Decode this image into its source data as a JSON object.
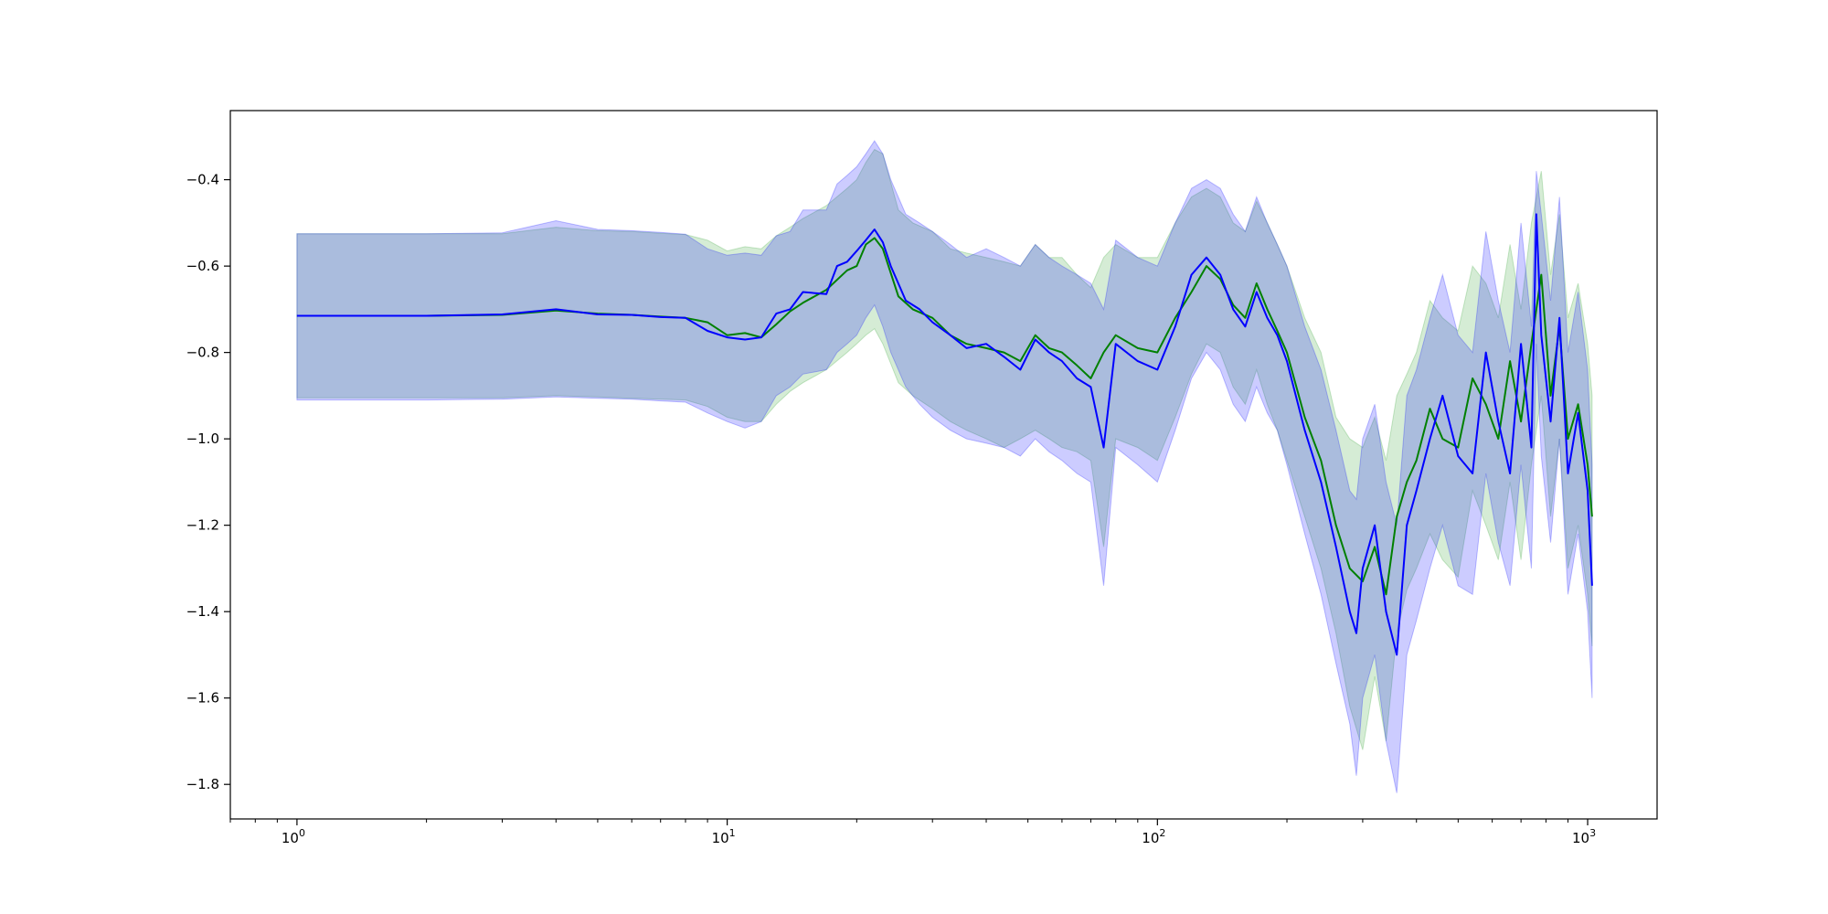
{
  "chart_data": {
    "type": "line",
    "title": "",
    "xlabel": "",
    "ylabel": "",
    "x_scale": "log",
    "xlim": [
      0.7,
      1450
    ],
    "ylim": [
      -1.88,
      -0.24
    ],
    "grid": false,
    "legend": "none",
    "x_ticks": [
      {
        "base": "10",
        "exp": "0",
        "value": 1
      },
      {
        "base": "10",
        "exp": "1",
        "value": 10
      },
      {
        "base": "10",
        "exp": "2",
        "value": 100
      },
      {
        "base": "10",
        "exp": "3",
        "value": 1000
      }
    ],
    "y_ticks": [
      {
        "label": "−0.4",
        "value": -0.4
      },
      {
        "label": "−0.6",
        "value": -0.6
      },
      {
        "label": "−0.8",
        "value": -0.8
      },
      {
        "label": "−1.0",
        "value": -1.0
      },
      {
        "label": "−1.2",
        "value": -1.2
      },
      {
        "label": "−1.4",
        "value": -1.4
      },
      {
        "label": "−1.6",
        "value": -1.6
      },
      {
        "label": "−1.8",
        "value": -1.8
      }
    ],
    "series": [
      {
        "color": "#008000",
        "band_color": "#2ca02c",
        "x": [
          1,
          2,
          3,
          4,
          5,
          6,
          7,
          8,
          9,
          10,
          11,
          12,
          13,
          14,
          15,
          17,
          19,
          20,
          21,
          22,
          23,
          25,
          27,
          30,
          33,
          36,
          40,
          44,
          48,
          52,
          56,
          60,
          65,
          70,
          75,
          80,
          90,
          100,
          110,
          120,
          130,
          140,
          150,
          160,
          170,
          180,
          190,
          200,
          220,
          240,
          260,
          280,
          300,
          320,
          340,
          360,
          380,
          400,
          430,
          460,
          500,
          540,
          580,
          620,
          660,
          700,
          740,
          780,
          820,
          860,
          900,
          950,
          1000,
          1024
        ],
        "y": [
          -0.715,
          -0.715,
          -0.713,
          -0.703,
          -0.71,
          -0.713,
          -0.717,
          -0.72,
          -0.73,
          -0.76,
          -0.755,
          -0.765,
          -0.735,
          -0.705,
          -0.685,
          -0.655,
          -0.61,
          -0.6,
          -0.55,
          -0.535,
          -0.56,
          -0.67,
          -0.7,
          -0.72,
          -0.76,
          -0.78,
          -0.79,
          -0.8,
          -0.82,
          -0.76,
          -0.79,
          -0.8,
          -0.83,
          -0.86,
          -0.8,
          -0.76,
          -0.79,
          -0.8,
          -0.72,
          -0.66,
          -0.6,
          -0.63,
          -0.69,
          -0.72,
          -0.64,
          -0.7,
          -0.75,
          -0.8,
          -0.95,
          -1.05,
          -1.2,
          -1.3,
          -1.33,
          -1.25,
          -1.36,
          -1.18,
          -1.1,
          -1.05,
          -0.93,
          -1.0,
          -1.02,
          -0.86,
          -0.92,
          -1.0,
          -0.82,
          -0.96,
          -0.78,
          -0.62,
          -0.9,
          -0.74,
          -1.0,
          -0.92,
          -1.06,
          -1.18
        ],
        "lower": [
          -0.905,
          -0.905,
          -0.905,
          -0.9,
          -0.903,
          -0.906,
          -0.908,
          -0.91,
          -0.925,
          -0.95,
          -0.96,
          -0.96,
          -0.92,
          -0.89,
          -0.87,
          -0.84,
          -0.8,
          -0.78,
          -0.76,
          -0.745,
          -0.78,
          -0.87,
          -0.9,
          -0.93,
          -0.96,
          -0.98,
          -1.0,
          -1.02,
          -1.0,
          -0.98,
          -1.0,
          -1.02,
          -1.03,
          -1.05,
          -1.25,
          -1.0,
          -1.02,
          -1.05,
          -0.95,
          -0.85,
          -0.78,
          -0.8,
          -0.88,
          -0.92,
          -0.84,
          -0.92,
          -0.98,
          -1.05,
          -1.18,
          -1.3,
          -1.45,
          -1.62,
          -1.72,
          -1.55,
          -1.7,
          -1.45,
          -1.35,
          -1.3,
          -1.22,
          -1.28,
          -1.32,
          -1.12,
          -1.2,
          -1.28,
          -1.1,
          -1.28,
          -1.06,
          -0.9,
          -1.18,
          -1.0,
          -1.3,
          -1.2,
          -1.36,
          -1.48
        ],
        "upper": [
          -0.525,
          -0.525,
          -0.525,
          -0.51,
          -0.518,
          -0.52,
          -0.524,
          -0.527,
          -0.54,
          -0.565,
          -0.555,
          -0.56,
          -0.53,
          -0.51,
          -0.49,
          -0.46,
          -0.42,
          -0.4,
          -0.36,
          -0.33,
          -0.34,
          -0.47,
          -0.5,
          -0.52,
          -0.56,
          -0.57,
          -0.58,
          -0.59,
          -0.6,
          -0.55,
          -0.58,
          -0.58,
          -0.62,
          -0.65,
          -0.58,
          -0.55,
          -0.58,
          -0.58,
          -0.5,
          -0.44,
          -0.42,
          -0.44,
          -0.5,
          -0.52,
          -0.45,
          -0.5,
          -0.55,
          -0.6,
          -0.72,
          -0.8,
          -0.95,
          -1.0,
          -1.02,
          -0.95,
          -1.05,
          -0.9,
          -0.85,
          -0.8,
          -0.68,
          -0.72,
          -0.75,
          -0.6,
          -0.64,
          -0.72,
          -0.55,
          -0.7,
          -0.5,
          -0.38,
          -0.62,
          -0.48,
          -0.72,
          -0.64,
          -0.78,
          -0.9
        ]
      },
      {
        "color": "#0000ff",
        "band_color": "#0000ff",
        "x": [
          1,
          2,
          3,
          4,
          5,
          6,
          7,
          8,
          9,
          10,
          11,
          12,
          13,
          14,
          15,
          17,
          18,
          19,
          20,
          21,
          22,
          23,
          24,
          26,
          28,
          30,
          33,
          36,
          40,
          44,
          48,
          52,
          56,
          60,
          65,
          70,
          75,
          80,
          90,
          100,
          110,
          120,
          130,
          140,
          150,
          160,
          170,
          180,
          190,
          200,
          220,
          240,
          260,
          280,
          290,
          300,
          320,
          340,
          360,
          380,
          400,
          430,
          460,
          500,
          540,
          580,
          620,
          660,
          700,
          740,
          760,
          780,
          820,
          860,
          900,
          950,
          1000,
          1024
        ],
        "y": [
          -0.715,
          -0.715,
          -0.712,
          -0.7,
          -0.712,
          -0.713,
          -0.718,
          -0.72,
          -0.75,
          -0.765,
          -0.77,
          -0.765,
          -0.71,
          -0.7,
          -0.66,
          -0.665,
          -0.6,
          -0.59,
          -0.565,
          -0.54,
          -0.515,
          -0.545,
          -0.6,
          -0.68,
          -0.7,
          -0.73,
          -0.76,
          -0.79,
          -0.78,
          -0.81,
          -0.84,
          -0.77,
          -0.8,
          -0.82,
          -0.86,
          -0.88,
          -1.02,
          -0.78,
          -0.82,
          -0.84,
          -0.74,
          -0.62,
          -0.58,
          -0.62,
          -0.7,
          -0.74,
          -0.66,
          -0.72,
          -0.76,
          -0.82,
          -0.98,
          -1.1,
          -1.25,
          -1.4,
          -1.45,
          -1.3,
          -1.2,
          -1.4,
          -1.5,
          -1.2,
          -1.12,
          -1.0,
          -0.9,
          -1.04,
          -1.08,
          -0.8,
          -0.96,
          -1.08,
          -0.78,
          -1.02,
          -0.48,
          -0.76,
          -0.96,
          -0.72,
          -1.08,
          -0.94,
          -1.12,
          -1.34
        ],
        "lower": [
          -0.91,
          -0.91,
          -0.908,
          -0.903,
          -0.906,
          -0.908,
          -0.912,
          -0.915,
          -0.94,
          -0.96,
          -0.975,
          -0.96,
          -0.9,
          -0.88,
          -0.85,
          -0.84,
          -0.8,
          -0.78,
          -0.76,
          -0.72,
          -0.69,
          -0.74,
          -0.8,
          -0.88,
          -0.92,
          -0.95,
          -0.98,
          -1.0,
          -1.01,
          -1.02,
          -1.04,
          -1.0,
          -1.03,
          -1.05,
          -1.08,
          -1.1,
          -1.34,
          -1.02,
          -1.06,
          -1.1,
          -0.98,
          -0.86,
          -0.8,
          -0.84,
          -0.92,
          -0.96,
          -0.88,
          -0.94,
          -0.98,
          -1.06,
          -1.22,
          -1.36,
          -1.52,
          -1.66,
          -1.78,
          -1.6,
          -1.5,
          -1.7,
          -1.82,
          -1.5,
          -1.42,
          -1.3,
          -1.2,
          -1.34,
          -1.36,
          -1.08,
          -1.24,
          -1.34,
          -1.06,
          -1.3,
          -0.78,
          -1.04,
          -1.24,
          -1.0,
          -1.36,
          -1.22,
          -1.4,
          -1.6
        ],
        "upper": [
          -0.525,
          -0.525,
          -0.523,
          -0.495,
          -0.515,
          -0.518,
          -0.522,
          -0.526,
          -0.56,
          -0.575,
          -0.57,
          -0.575,
          -0.53,
          -0.52,
          -0.47,
          -0.47,
          -0.41,
          -0.39,
          -0.37,
          -0.34,
          -0.31,
          -0.34,
          -0.4,
          -0.48,
          -0.5,
          -0.52,
          -0.55,
          -0.58,
          -0.56,
          -0.58,
          -0.6,
          -0.55,
          -0.58,
          -0.6,
          -0.62,
          -0.64,
          -0.7,
          -0.54,
          -0.58,
          -0.6,
          -0.5,
          -0.42,
          -0.4,
          -0.42,
          -0.48,
          -0.52,
          -0.44,
          -0.5,
          -0.55,
          -0.6,
          -0.74,
          -0.84,
          -0.98,
          -1.12,
          -1.14,
          -1.0,
          -0.92,
          -1.1,
          -1.2,
          -0.9,
          -0.84,
          -0.72,
          -0.62,
          -0.76,
          -0.8,
          -0.52,
          -0.68,
          -0.8,
          -0.5,
          -0.74,
          -0.38,
          -0.48,
          -0.68,
          -0.44,
          -0.8,
          -0.66,
          -0.84,
          -1.06
        ]
      }
    ]
  }
}
